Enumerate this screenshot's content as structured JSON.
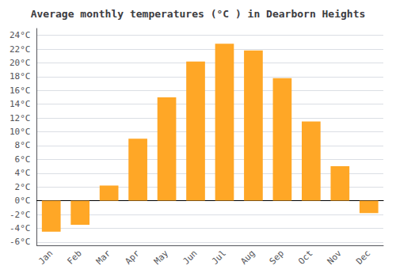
{
  "chart_data": {
    "type": "bar",
    "title": "Average monthly temperatures (°C ) in Dearborn Heights",
    "categories": [
      "Jan",
      "Feb",
      "Mar",
      "Apr",
      "May",
      "Jun",
      "Jul",
      "Aug",
      "Sep",
      "Oct",
      "Nov",
      "Dec"
    ],
    "values": [
      -4.5,
      -3.5,
      2.2,
      9.0,
      15.0,
      20.2,
      22.8,
      21.8,
      17.8,
      11.5,
      5.0,
      -1.8
    ],
    "color": "#FFA726",
    "ylim": [
      -6.5,
      25
    ],
    "yticks": [
      {
        "value": -6,
        "label": "-6°C"
      },
      {
        "value": -4,
        "label": "-4°C"
      },
      {
        "value": -2,
        "label": "-2°C"
      },
      {
        "value": 0,
        "label": "0°C"
      },
      {
        "value": 2,
        "label": "2°C"
      },
      {
        "value": 4,
        "label": "4°C"
      },
      {
        "value": 6,
        "label": "6°C"
      },
      {
        "value": 8,
        "label": "8°C"
      },
      {
        "value": 10,
        "label": "10°C"
      },
      {
        "value": 12,
        "label": "12°C"
      },
      {
        "value": 14,
        "label": "14°C"
      },
      {
        "value": 16,
        "label": "16°C"
      },
      {
        "value": 18,
        "label": "18°C"
      },
      {
        "value": 20,
        "label": "20°C"
      },
      {
        "value": 22,
        "label": "22°C"
      },
      {
        "value": 24,
        "label": "24°C"
      }
    ],
    "grid": true
  }
}
